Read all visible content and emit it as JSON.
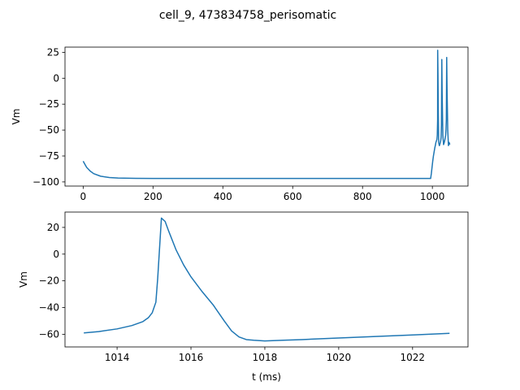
{
  "figure": {
    "suptitle": "cell_9, 473834758_perisomatic"
  },
  "chart_data": [
    {
      "type": "line",
      "title": "",
      "xlabel": "",
      "ylabel": "Vm",
      "xlim": [
        -52,
        1102
      ],
      "ylim": [
        -104,
        30
      ],
      "xticks": [
        0,
        200,
        400,
        600,
        800,
        1000
      ],
      "yticks": [
        -100,
        -75,
        -50,
        -25,
        0,
        25
      ],
      "series": [
        {
          "color": "#1f77b4",
          "x": [
            0,
            5,
            10,
            20,
            30,
            50,
            75,
            100,
            150,
            200,
            300,
            500,
            700,
            900,
            995,
            997,
            999,
            1001,
            1003,
            1005,
            1007,
            1009,
            1010,
            1011,
            1012,
            1013,
            1014,
            1015,
            1015.2,
            1016,
            1017,
            1018,
            1020,
            1022,
            1024,
            1025,
            1026,
            1027,
            1028,
            1030,
            1032,
            1034,
            1036,
            1038,
            1039,
            1040,
            1041,
            1042,
            1044,
            1046,
            1048,
            1050
          ],
          "y": [
            -80,
            -83,
            -86,
            -89.5,
            -92,
            -94.5,
            -95.8,
            -96.3,
            -96.6,
            -96.7,
            -96.7,
            -96.7,
            -96.7,
            -96.7,
            -96.7,
            -92,
            -86,
            -80,
            -75,
            -71,
            -67,
            -64,
            -62,
            -61,
            -60,
            -59,
            -55,
            -40,
            27,
            5,
            -35,
            -62,
            -65,
            -63,
            -60,
            -57,
            -45,
            18,
            -15,
            -55,
            -64,
            -62,
            -59,
            -55,
            -50,
            -40,
            20,
            -10,
            -50,
            -65,
            -62,
            -64
          ]
        }
      ]
    },
    {
      "type": "line",
      "title": "",
      "xlabel": "t (ms)",
      "ylabel": "Vm",
      "xlim": [
        1012.59,
        1023.5
      ],
      "ylim": [
        -69.5,
        31.5
      ],
      "xticks": [
        1014,
        1016,
        1018,
        1020,
        1022
      ],
      "yticks": [
        -60,
        -40,
        -20,
        0,
        20
      ],
      "series": [
        {
          "color": "#1f77b4",
          "x": [
            1013.1,
            1013.5,
            1014.0,
            1014.4,
            1014.7,
            1014.85,
            1014.95,
            1015.05,
            1015.1,
            1015.2,
            1015.3,
            1015.4,
            1015.6,
            1015.8,
            1016.0,
            1016.3,
            1016.6,
            1016.9,
            1017.1,
            1017.3,
            1017.5,
            1017.7,
            1018.0,
            1018.5,
            1019.0,
            1020.0,
            1021.0,
            1022.0,
            1023.0
          ],
          "y": [
            -59,
            -58,
            -56,
            -53.5,
            -50.5,
            -47.5,
            -44,
            -36,
            -18,
            27,
            24.5,
            17,
            3,
            -8,
            -17,
            -28,
            -38,
            -50,
            -57.5,
            -62,
            -64,
            -64.5,
            -65,
            -64.5,
            -64,
            -62.8,
            -61.7,
            -60.5,
            -59.3
          ]
        }
      ]
    }
  ]
}
